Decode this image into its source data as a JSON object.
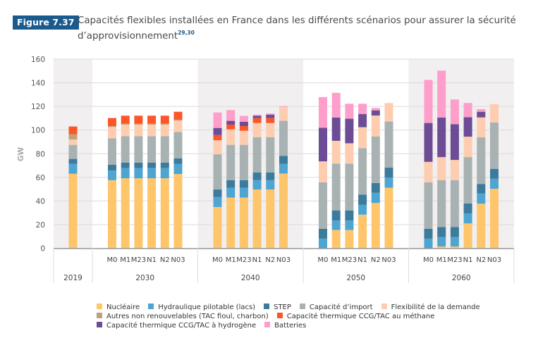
{
  "figure": {
    "badge": "Figure 7.37",
    "title_line1": "Capacités flexibles installées en France dans les différents scénarios pour assurer la sécurité",
    "title_line2": "d’approvisionnement",
    "title_superscript": "29,30",
    "badge_color": "#1b5a8c"
  },
  "chart_data": {
    "type": "bar",
    "stacked": true,
    "title": "Capacités flexibles installées en France dans les différents scénarios pour assurer la sécurité d’approvisionnement",
    "xlabel": "",
    "ylabel": "GW",
    "ylim": [
      0,
      160
    ],
    "yticks": [
      0,
      20,
      40,
      60,
      80,
      100,
      120,
      140,
      160
    ],
    "grid": true,
    "legend_position": "bottom",
    "groups": [
      {
        "label": "2019",
        "categories": [
          ""
        ],
        "shaded": true
      },
      {
        "label": "2030",
        "categories": [
          "M0",
          "M1",
          "M23",
          "N1",
          "N2",
          "N03"
        ],
        "shaded": false
      },
      {
        "label": "2040",
        "categories": [
          "M0",
          "M1",
          "M23",
          "N1",
          "N2",
          "N03"
        ],
        "shaded": true
      },
      {
        "label": "2050",
        "categories": [
          "M0",
          "M1",
          "M23",
          "N1",
          "N2",
          "N03"
        ],
        "shaded": false
      },
      {
        "label": "2060",
        "categories": [
          "M0",
          "M1",
          "M23",
          "N1",
          "N2",
          "N03"
        ],
        "shaded": true
      }
    ],
    "series": [
      {
        "name": "Nucléaire",
        "color": "#fec56b",
        "values": [
          63,
          57.6,
          59.2,
          59.2,
          59.2,
          59.2,
          62.8,
          34.9,
          42.9,
          42.9,
          49.7,
          49.7,
          63.2,
          0,
          15.4,
          15.4,
          28.4,
          38.3,
          51.2,
          0,
          1.5,
          1.5,
          21.0,
          37.7,
          50.3
        ]
      },
      {
        "name": "Hydraulique pilotable (lacs)",
        "color": "#4ea5d1",
        "values": [
          8.4,
          8.2,
          8.6,
          8.6,
          8.6,
          8.6,
          8.5,
          8.4,
          8.3,
          8.3,
          7.9,
          7.9,
          8.3,
          8.1,
          8.0,
          8.0,
          8.3,
          8.6,
          8.6,
          8.1,
          7.9,
          7.9,
          8.4,
          8.6,
          8.5
        ]
      },
      {
        "name": "STEP",
        "color": "#3c7b9c",
        "values": [
          4.2,
          4.9,
          4.7,
          4.7,
          4.7,
          4.7,
          4.8,
          6.4,
          6.4,
          6.4,
          6.6,
          6.6,
          6.6,
          8.3,
          8.5,
          8.5,
          8.6,
          8.3,
          8.4,
          8.3,
          8.6,
          8.6,
          8.5,
          8.1,
          8.4
        ]
      },
      {
        "name": "Capacité d’import",
        "color": "#a8b2b2",
        "values": [
          11.9,
          22.3,
          22.3,
          22.3,
          22.3,
          22.3,
          22.3,
          29.8,
          29.9,
          29.9,
          29.8,
          29.8,
          29.7,
          39.4,
          39.6,
          39.6,
          39.4,
          39.4,
          39.1,
          39.4,
          39.6,
          39.6,
          39.2,
          39.4,
          39.2
        ]
      },
      {
        "name": "Flexibilité de la demande",
        "color": "#fecdb0",
        "values": [
          4.5,
          9.6,
          9.8,
          9.8,
          9.8,
          9.8,
          9.6,
          11.9,
          13.1,
          11.9,
          12.0,
          12.0,
          11.9,
          17.7,
          19.4,
          17.3,
          17.7,
          17.7,
          15.6,
          17.3,
          19.5,
          17.1,
          17.3,
          16.9,
          15.6
        ]
      },
      {
        "name": "Autres non renouvelables (TAC fioul, charbon)",
        "color": "#bda27a",
        "values": [
          4.4,
          0.8,
          0.8,
          0.8,
          0.8,
          0.8,
          0.8,
          0,
          0,
          0,
          0,
          0,
          0,
          0,
          0,
          0,
          0,
          0,
          0,
          0,
          0,
          0,
          0,
          0,
          0
        ]
      },
      {
        "name": "Capacité thermique CCG/TAC au méthane",
        "color": "#fe5527",
        "values": [
          6.6,
          6.6,
          6.6,
          6.6,
          6.6,
          6.6,
          6.5,
          4.4,
          4.0,
          4.0,
          4.1,
          4.1,
          0,
          0,
          0,
          0,
          0,
          0,
          0,
          0,
          0,
          0,
          0,
          0,
          0
        ]
      },
      {
        "name": "Capacité thermique CCG/TAC à hydrogène",
        "color": "#6d4c96",
        "values": [
          0,
          0,
          0,
          0,
          0,
          0,
          0,
          6.0,
          3.2,
          3.6,
          2.0,
          2.9,
          0,
          28.5,
          19.7,
          20.8,
          11.1,
          4.4,
          0,
          32.9,
          33.5,
          30.3,
          16.5,
          4.8,
          0
        ]
      },
      {
        "name": "Batteries",
        "color": "#fe9ecb",
        "values": [
          0,
          0.4,
          0.4,
          0.4,
          0.4,
          0.4,
          0.4,
          13.1,
          9.1,
          5.0,
          0.9,
          1.1,
          0.6,
          25.9,
          20.9,
          12.7,
          8.8,
          2.0,
          0,
          36.4,
          39.7,
          20.9,
          12.0,
          2.2,
          0
        ]
      }
    ]
  },
  "legend": {
    "rows": [
      [
        0,
        1,
        2,
        3,
        4
      ],
      [
        5,
        6
      ],
      [
        7,
        8
      ]
    ]
  }
}
